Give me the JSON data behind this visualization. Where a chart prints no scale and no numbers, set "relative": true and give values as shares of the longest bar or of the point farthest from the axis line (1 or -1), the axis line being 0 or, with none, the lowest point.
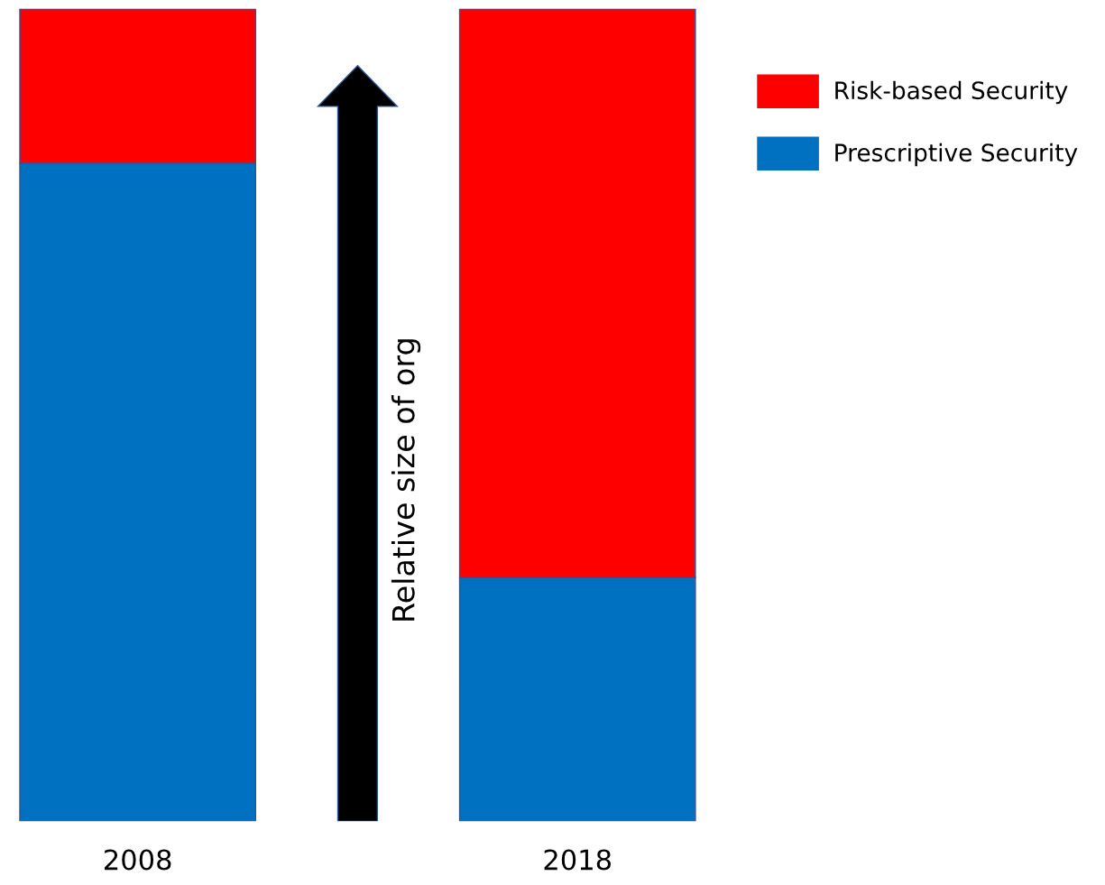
{
  "chart_data": {
    "type": "bar",
    "stacked": true,
    "relative": true,
    "categories": [
      "2008",
      "2018"
    ],
    "series": [
      {
        "name": "Prescriptive Security",
        "color": "#0070c0",
        "values": [
          0.81,
          0.3
        ]
      },
      {
        "name": "Risk-based Security",
        "color": "#ff0000",
        "values": [
          0.19,
          0.7
        ]
      }
    ],
    "legend": "right",
    "annotations": [
      "Relative size of org"
    ]
  }
}
